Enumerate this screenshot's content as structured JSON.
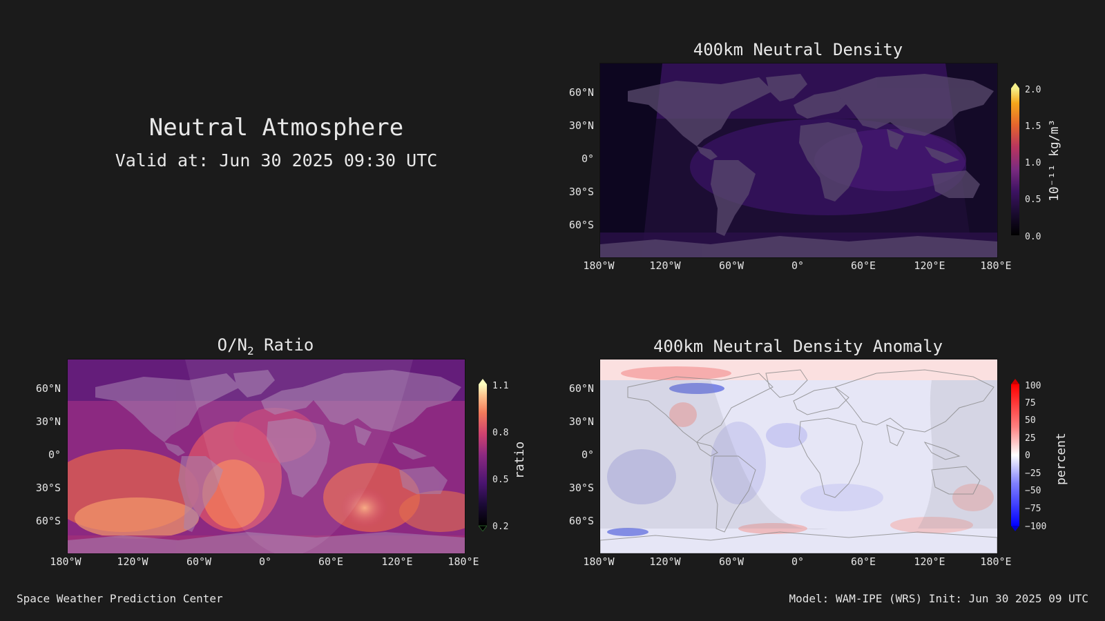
{
  "header": {
    "title": "Neutral Atmosphere",
    "valid": "Valid at: Jun 30 2025 09:30 UTC"
  },
  "axes": {
    "lat_labels": [
      "60°N",
      "30°N",
      "0°",
      "30°S",
      "60°S"
    ],
    "lon_labels": [
      "180°W",
      "120°W",
      "60°W",
      "0°",
      "60°E",
      "120°E",
      "180°E"
    ]
  },
  "panels": {
    "density": {
      "title": "400km Neutral Density",
      "cbar_ticks": [
        "2.0",
        "1.5",
        "1.0",
        "0.5",
        "0.0"
      ],
      "cbar_label": "10⁻¹¹ kg/m³"
    },
    "ratio": {
      "title_prefix": "O/N",
      "title_sub": "2",
      "title_suffix": " Ratio",
      "cbar_ticks": [
        "1.1",
        "0.8",
        "0.5",
        "0.2"
      ],
      "cbar_label": "ratio"
    },
    "anomaly": {
      "title": "400km Neutral Density Anomaly",
      "cbar_ticks": [
        "100",
        "75",
        "50",
        "25",
        "0",
        "−25",
        "−50",
        "−75",
        "−100"
      ],
      "cbar_label": "percent"
    }
  },
  "footer": {
    "left": "Space Weather Prediction Center",
    "right": "Model: WAM-IPE (WRS) Init: Jun 30 2025 09 UTC"
  },
  "colors": {
    "background": "#1b1b1b",
    "density_scale": [
      "#000000",
      "#1a0b30",
      "#3d1262",
      "#7b2b80",
      "#b8355e",
      "#e4652d",
      "#f5a71b",
      "#f6f08a"
    ],
    "ratio_scale": [
      "#000000",
      "#1b0a36",
      "#4a1470",
      "#8c2981",
      "#d0426f",
      "#f37b5a",
      "#fcc38e",
      "#fcfdbf"
    ],
    "anomaly_scale": [
      "#0000ff",
      "#8080ff",
      "#ffffff",
      "#ff8080",
      "#ff0000"
    ]
  }
}
